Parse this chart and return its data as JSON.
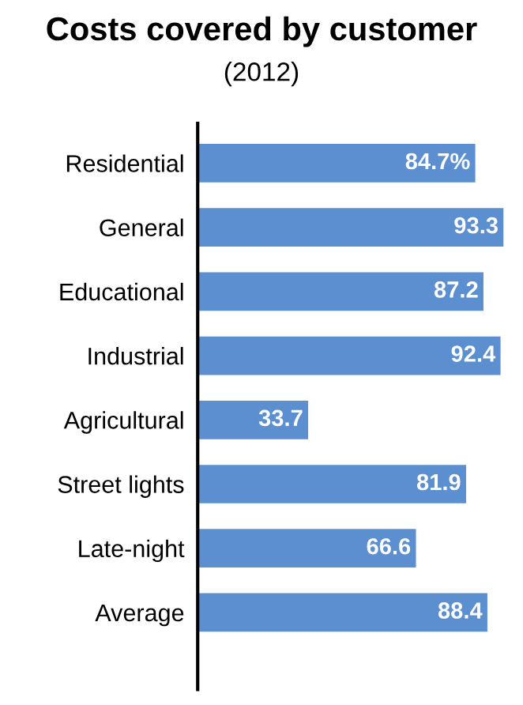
{
  "chart_data": {
    "type": "bar",
    "orientation": "horizontal",
    "title": "Costs covered by customer",
    "subtitle": "(2012)",
    "categories": [
      "Residential",
      "General",
      "Educational",
      "Industrial",
      "Agricultural",
      "Street lights",
      "Late-night",
      "Average"
    ],
    "values": [
      84.7,
      93.3,
      87.2,
      92.4,
      33.7,
      81.9,
      66.6,
      88.4
    ],
    "value_labels": [
      "84.7%",
      "93.3",
      "87.2",
      "92.4",
      "33.7",
      "81.9",
      "66.6",
      "88.4"
    ],
    "color": "#5b8fd0",
    "xlim": [
      0,
      94
    ],
    "grid": false,
    "legend": false
  }
}
